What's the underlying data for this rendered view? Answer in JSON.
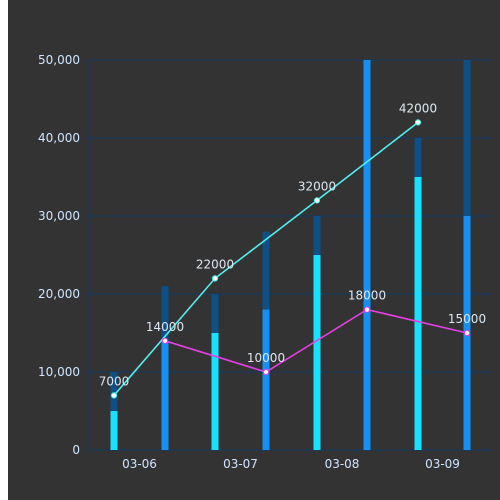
{
  "chart_data": {
    "type": "bar+line",
    "categories": [
      "03-06",
      "03-07",
      "03-08",
      "03-09"
    ],
    "x_slots": [
      "03-06a",
      "03-06b",
      "03-07a",
      "03-07b",
      "03-08a",
      "03-08b",
      "03-09a",
      "03-09b"
    ],
    "ylim": [
      0,
      50000
    ],
    "yticks": [
      0,
      10000,
      20000,
      30000,
      40000,
      50000
    ],
    "ytick_labels": [
      "0",
      "10,000",
      "20,000",
      "30,000",
      "40,000",
      "50,000"
    ],
    "bars_background": [
      10000,
      21000,
      20000,
      28000,
      30000,
      50000,
      40000,
      50000
    ],
    "bars_foreground": [
      5000,
      14000,
      15000,
      18000,
      25000,
      50000,
      35000,
      30000
    ],
    "series": [
      {
        "color": "#4ff0f0",
        "points": [
          [
            0,
            7000
          ],
          [
            2,
            22000
          ],
          [
            4,
            32000
          ],
          [
            6,
            42000
          ]
        ],
        "labels": [
          "7000",
          "22000",
          "32000",
          "42000"
        ]
      },
      {
        "color": "#e83ee6",
        "points": [
          [
            1,
            14000
          ],
          [
            3,
            10000
          ],
          [
            5,
            18000
          ],
          [
            7,
            15000
          ]
        ],
        "labels": [
          "14000",
          "10000",
          "18000",
          "15000"
        ]
      }
    ],
    "colors": {
      "panel_bg": "#333333",
      "grid": "#123a66",
      "bar_bg": "#0d4f86",
      "bar_fg_a": "#16e1ff",
      "bar_fg_b": "#1690f5"
    }
  }
}
